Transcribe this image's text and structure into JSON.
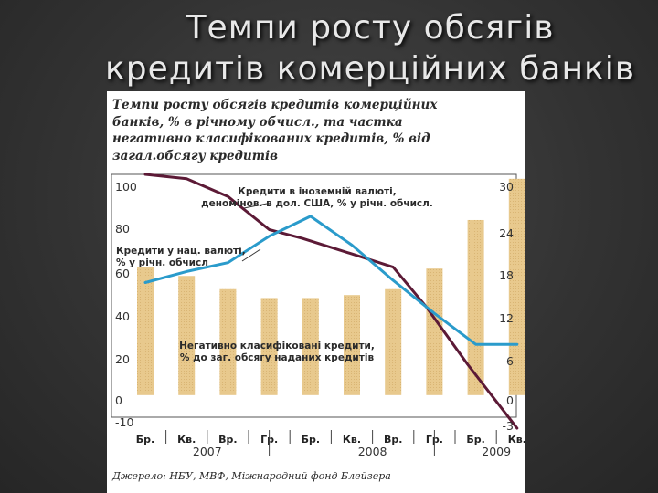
{
  "slide": {
    "title_line1": "Темпи росту обсягів",
    "title_line2": "кредитів комерційних банків"
  },
  "chart_data": {
    "type": "bar+line",
    "title": "Темпи росту обсягів кредитів комерційних банків, % в річному обчисл., та частка негативно класифікованих кредитів, % від загал.обсягу кредитів",
    "title_lines": [
      "Темпи росту обсягів кредитів комерційних",
      "банків, % в річному обчисл., та частка",
      "негативно класифікованих кредитів, % від",
      "загал.обсягу кредитів"
    ],
    "source": "Джерело: НБУ, МВФ, Міжнародний фонд Блейзера",
    "left_axis": {
      "ticks": [
        100,
        80,
        60,
        40,
        20,
        0,
        -10
      ],
      "tick_labels": [
        "100",
        "80",
        "60",
        "40",
        "20",
        "0",
        "-10"
      ],
      "range": [
        -10,
        100
      ]
    },
    "right_axis": {
      "ticks": [
        30,
        24,
        18,
        12,
        6,
        0,
        -3
      ],
      "tick_labels": [
        "30",
        "24",
        "18",
        "12",
        "6",
        "0",
        "-3"
      ],
      "range": [
        -3,
        30
      ]
    },
    "categories": [
      "Бр.",
      "Кв.",
      "Вр.",
      "Гр.",
      "Бр.",
      "Кв.",
      "Вр.",
      "Гр.",
      "Бр.",
      "Кв."
    ],
    "years": [
      {
        "label": "2007",
        "center_index": 1.5
      },
      {
        "label": "2008",
        "center_index": 5.5
      },
      {
        "label": "2009",
        "center_index": 8.5
      }
    ],
    "series": [
      {
        "name": "Негативно класифіковані кредити, % до заг. обсягу наданих кредитів",
        "type": "bar",
        "axis": "right",
        "color": "#e8c98d",
        "values": [
          17.4,
          16.2,
          14.4,
          13.2,
          13.2,
          13.6,
          14.4,
          17.2,
          23.8,
          29.4
        ]
      },
      {
        "name": "Кредити в іноземній валюті, деномін. в дол. США, % у річн. обчисл.",
        "type": "line",
        "axis": "left",
        "color": "#5c1a36",
        "x": [
          0,
          1,
          2,
          3,
          3.8,
          5,
          6,
          6.8,
          7.8,
          9
        ],
        "values": [
          100,
          98,
          90,
          75,
          71,
          64,
          58,
          40,
          14,
          -15
        ]
      },
      {
        "name": "Кредити у нац. валюті, % у річн. обчисл",
        "type": "line",
        "axis": "left",
        "color": "#2a9bcb",
        "x": [
          0,
          1,
          2,
          3,
          4,
          5,
          6,
          7,
          8,
          9
        ],
        "values": [
          51,
          56,
          60,
          72,
          81,
          68,
          52,
          37,
          23,
          23
        ]
      }
    ],
    "annotations": [
      {
        "lines": [
          "Кредити в іноземній валюті,",
          "деномінов. в дол. США, % у річн. обчисл."
        ],
        "series": 1
      },
      {
        "lines": [
          "Кредити у нац. валюті,",
          "% у річн. обчисл"
        ],
        "series": 2
      },
      {
        "lines": [
          "Негативно класифіковані кредити,",
          "% до заг. обсягу наданих кредитів"
        ],
        "series": 0
      }
    ],
    "grid": false
  }
}
